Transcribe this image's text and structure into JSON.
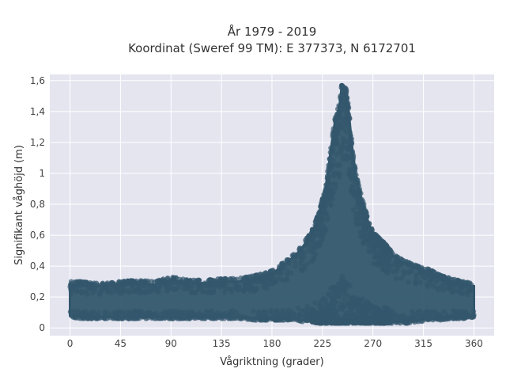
{
  "chart_data": {
    "type": "scatter",
    "title_line1": "År 1979 - 2019",
    "title_line2": "Koordinat (Sweref 99 TM): E 377373, N 6172701",
    "xlabel": "Vågriktning (grader)",
    "ylabel": "Signifikant våghöjd (m)",
    "xlim": [
      -18,
      378
    ],
    "ylim": [
      -0.05,
      1.64
    ],
    "xticks": [
      0,
      45,
      90,
      135,
      180,
      225,
      270,
      315,
      360
    ],
    "xtick_labels": [
      "0",
      "45",
      "90",
      "135",
      "180",
      "225",
      "270",
      "315",
      "360"
    ],
    "yticks": [
      0,
      0.2,
      0.4,
      0.6,
      0.8,
      1.0,
      1.2,
      1.4,
      1.6
    ],
    "ytick_labels": [
      "0",
      "0,2",
      "0,4",
      "0,6",
      "0,8",
      "1",
      "1,2",
      "1,4",
      "1,6"
    ],
    "grid": true,
    "colors": {
      "plot_background": "#e5e5f0",
      "grid": "#ffffff",
      "marker": "#33576c"
    },
    "envelope": {
      "x": [
        0,
        10,
        20,
        30,
        45,
        60,
        75,
        90,
        105,
        120,
        135,
        150,
        165,
        180,
        195,
        205,
        215,
        222,
        228,
        232,
        236,
        240,
        242,
        244,
        246,
        248,
        250,
        252,
        255,
        258,
        262,
        266,
        270,
        280,
        290,
        300,
        310,
        320,
        330,
        340,
        350,
        360
      ],
      "y_min": [
        0.07,
        0.06,
        0.06,
        0.06,
        0.06,
        0.06,
        0.06,
        0.06,
        0.06,
        0.06,
        0.06,
        0.06,
        0.05,
        0.05,
        0.05,
        0.04,
        0.04,
        0.03,
        0.03,
        0.03,
        0.03,
        0.03,
        0.03,
        0.03,
        0.03,
        0.03,
        0.03,
        0.03,
        0.03,
        0.03,
        0.03,
        0.03,
        0.03,
        0.03,
        0.03,
        0.03,
        0.04,
        0.05,
        0.05,
        0.06,
        0.06,
        0.07
      ],
      "y_max": [
        0.3,
        0.3,
        0.29,
        0.29,
        0.3,
        0.31,
        0.3,
        0.33,
        0.31,
        0.31,
        0.32,
        0.32,
        0.34,
        0.37,
        0.45,
        0.52,
        0.62,
        0.75,
        0.92,
        1.15,
        1.35,
        1.45,
        1.57,
        1.56,
        1.55,
        1.45,
        1.3,
        1.15,
        1.0,
        0.9,
        0.8,
        0.7,
        0.62,
        0.55,
        0.47,
        0.43,
        0.4,
        0.38,
        0.34,
        0.32,
        0.3,
        0.29
      ]
    }
  }
}
